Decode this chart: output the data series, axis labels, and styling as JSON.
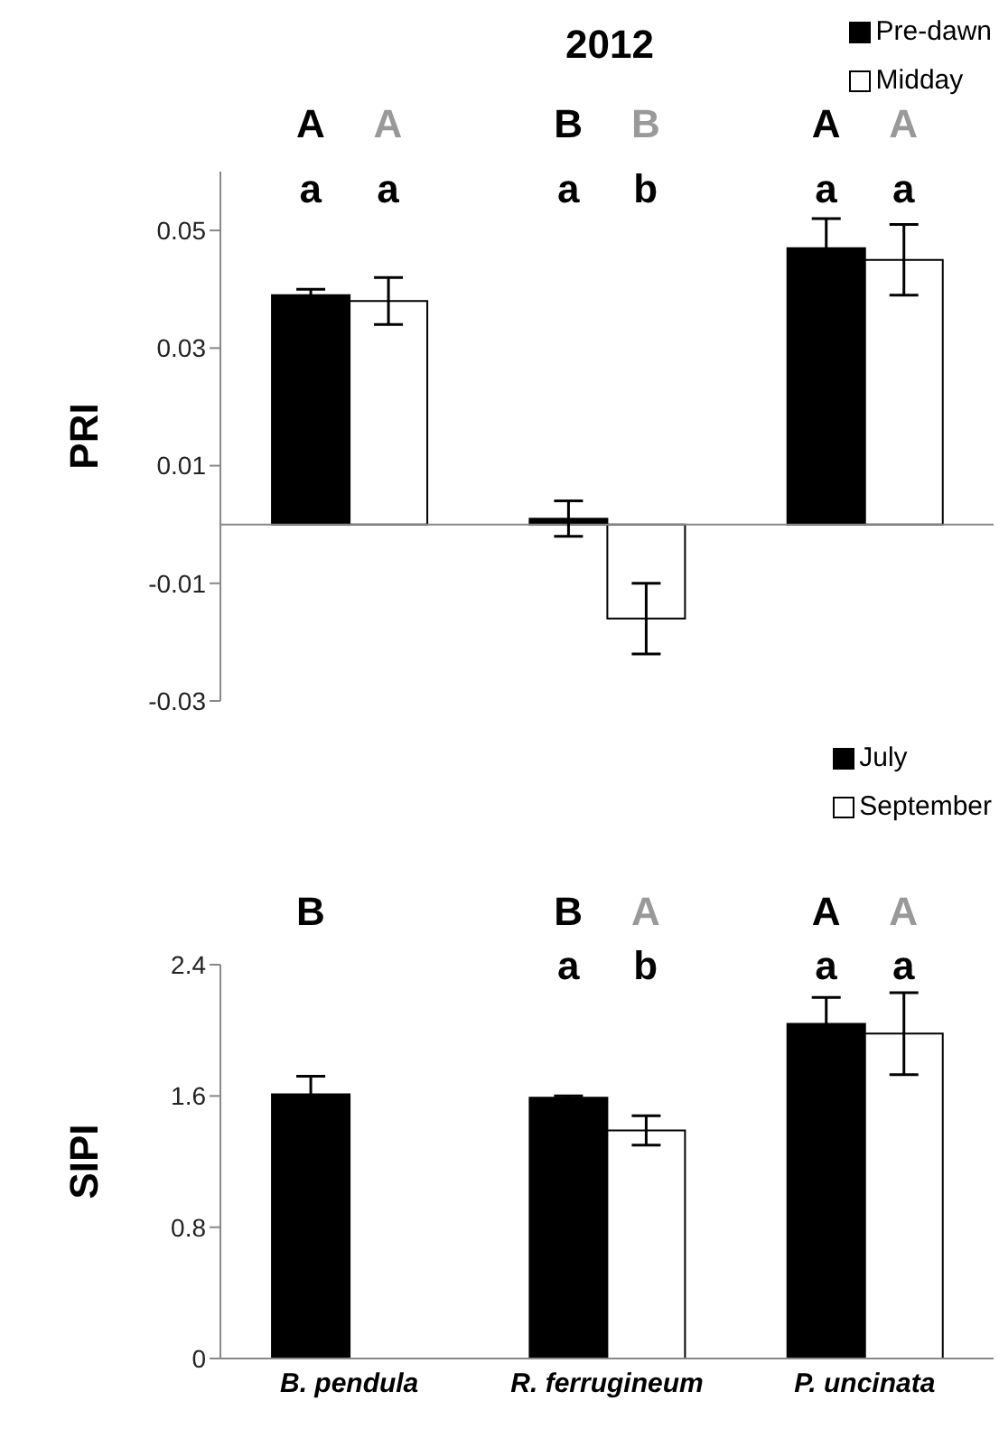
{
  "chart_data": [
    {
      "type": "bar",
      "title": "2012",
      "ylabel": "PRI",
      "categories": [
        null,
        null,
        null
      ],
      "tick_labels": "y",
      "legend": "top right",
      "ylim": [
        -0.03,
        0.06
      ],
      "yticks": [
        -0.03,
        -0.01,
        0.01,
        0.03,
        0.05
      ],
      "series": [
        {
          "name": "Pre-dawn",
          "color": "#000000",
          "values": [
            0.039,
            0.001,
            0.047
          ],
          "errors": [
            0.001,
            0.003,
            0.005
          ]
        },
        {
          "name": "Midday",
          "color": "#ffffff",
          "values": [
            0.038,
            -0.016,
            0.045
          ],
          "errors": [
            0.004,
            0.006,
            0.006
          ]
        }
      ],
      "annotations": [
        "A",
        "A",
        "B",
        "B",
        "A",
        "A",
        "a",
        "a",
        "a",
        "b",
        "a",
        "a"
      ]
    },
    {
      "type": "bar",
      "ylabel": "SIPI",
      "categories": [
        "B. pendula",
        "R. ferrugineum",
        "P. uncinata"
      ],
      "legend": "top right",
      "ylim": [
        0,
        2.4
      ],
      "yticks": [
        0,
        0.8,
        1.6,
        2.4
      ],
      "series": [
        {
          "name": "July",
          "color": "#000000",
          "values": [
            1.61,
            1.59,
            2.04
          ],
          "errors": [
            0.11,
            0.01,
            0.16
          ]
        },
        {
          "name": "September",
          "color": "#ffffff",
          "values": [
            null,
            1.39,
            1.98
          ],
          "errors": [
            null,
            0.09,
            0.25
          ]
        }
      ],
      "annotations": [
        "B",
        "B",
        "A",
        "A",
        "A",
        "a",
        "b",
        "a",
        "a"
      ]
    }
  ]
}
